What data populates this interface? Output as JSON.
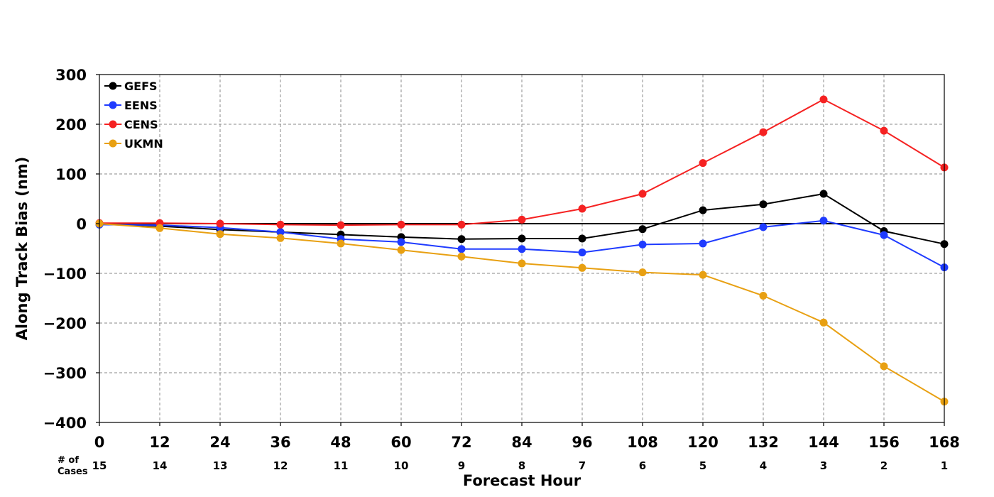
{
  "chart_data": {
    "type": "line",
    "xlabel": "Forecast Hour",
    "ylabel": "Along Track Bias (nm)",
    "x": [
      0,
      12,
      24,
      36,
      48,
      60,
      72,
      84,
      96,
      108,
      120,
      132,
      144,
      156,
      168
    ],
    "cases_label": [
      "# of",
      "Cases"
    ],
    "cases": [
      15,
      14,
      13,
      12,
      11,
      10,
      9,
      8,
      7,
      6,
      5,
      4,
      3,
      2,
      1
    ],
    "ylim": [
      -400,
      300
    ],
    "yticks": [
      -400,
      -300,
      -200,
      -100,
      0,
      100,
      200,
      300
    ],
    "grid": true,
    "legend_position": "top-left",
    "series": [
      {
        "name": "GEFS",
        "color": "#000000",
        "values": [
          0,
          -5,
          -12,
          -17,
          -22,
          -27,
          -31,
          -30,
          -30,
          -11,
          27,
          39,
          60,
          -15,
          -41
        ]
      },
      {
        "name": "EENS",
        "color": "#1f3bff",
        "values": [
          -2,
          -3,
          -8,
          -17,
          -31,
          -37,
          -51,
          -51,
          -58,
          -42,
          -40,
          -7,
          6,
          -23,
          -88
        ]
      },
      {
        "name": "CENS",
        "color": "#f52222",
        "values": [
          1,
          1,
          0,
          -2,
          -3,
          -2,
          -2,
          8,
          30,
          60,
          122,
          184,
          250,
          187,
          113
        ]
      },
      {
        "name": "UKMN",
        "color": "#e8a012",
        "values": [
          0,
          -9,
          -21,
          -29,
          -40,
          -53,
          -66,
          -80,
          -89,
          -98,
          -103,
          -145,
          -199,
          -287,
          -358
        ]
      }
    ]
  }
}
